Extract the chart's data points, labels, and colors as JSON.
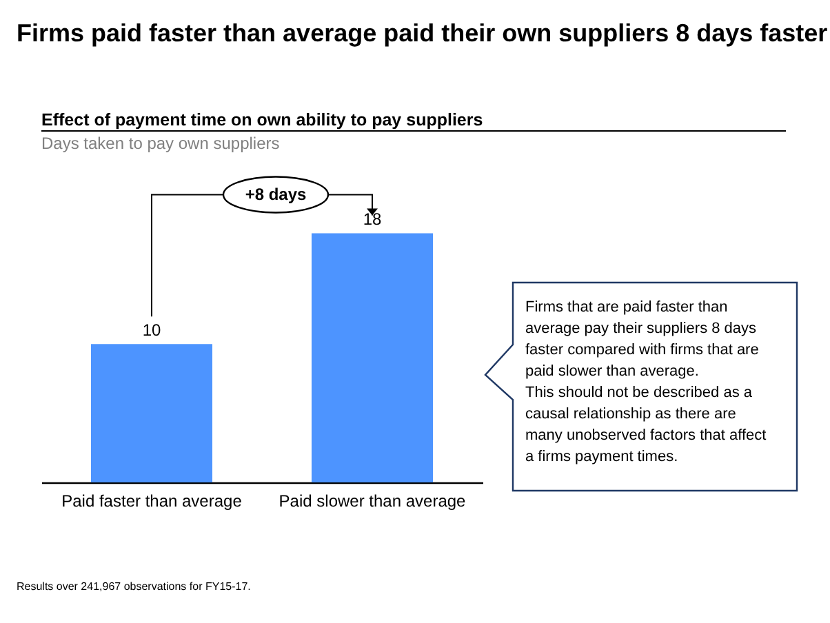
{
  "chart_data": {
    "type": "bar",
    "title": "Firms paid faster than average paid their own suppliers 8 days faster",
    "subtitle": "Effect of payment time on own ability to pay suppliers",
    "ylabel": "Days taken to pay own suppliers",
    "categories": [
      "Paid faster than average",
      "Paid slower than average"
    ],
    "values": [
      10,
      18
    ],
    "color": "#4d94ff",
    "data_labels": true,
    "grid": false,
    "annotations": [
      "+8 days",
      "Firms that are paid faster than average pay their suppliers 8 days faster compared with firms that are paid slower than average.",
      "This should not be described as a causal relationship as there are many unobserved factors that affect a firms payment times.",
      "Results over 241,967 observations for FY15-17."
    ]
  }
}
